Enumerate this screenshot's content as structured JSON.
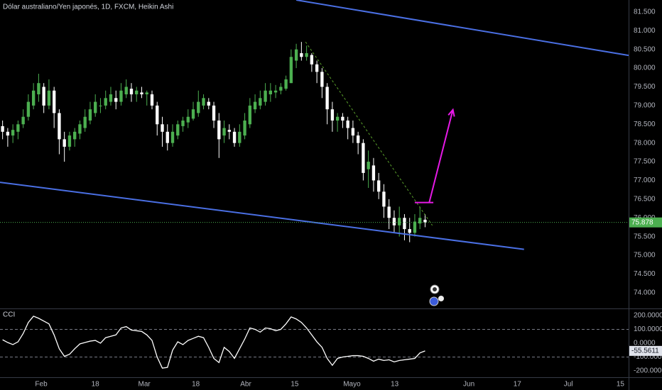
{
  "chart_data": [
    {
      "type": "candlestick",
      "title": "Dólar australiano/Yen japonés, 1D, FXCM, Heikin Ashi",
      "up_color": "#4caf50",
      "down_color": "#ffffff",
      "open": [
        78.45,
        78.3,
        78.2,
        78.3,
        78.5,
        78.7,
        79.0,
        79.3,
        79.5,
        79.0,
        79.4,
        78.8,
        78.1,
        77.9,
        78.1,
        78.25,
        78.4,
        78.6,
        78.8,
        79.0,
        79.0,
        79.1,
        79.2,
        79.1,
        79.3,
        79.45,
        79.3,
        79.35,
        79.3,
        79.3,
        79.0,
        78.5,
        78.3,
        78.0,
        78.2,
        78.45,
        78.55,
        78.65,
        78.8,
        79.0,
        79.1,
        79.0,
        78.6,
        78.2,
        78.35,
        78.3,
        78.0,
        78.2,
        78.5,
        78.9,
        79.0,
        79.1,
        79.3,
        79.35,
        79.4,
        79.45,
        79.6,
        80.2,
        80.4,
        80.3,
        80.35,
        80.1,
        79.9,
        79.5,
        78.9,
        78.6,
        78.7,
        78.6,
        78.4,
        78.2,
        78.0,
        77.3,
        77.4,
        77.0,
        76.7,
        76.3,
        76.0,
        75.8,
        76.0,
        75.7,
        75.6,
        75.85,
        75.95
      ],
      "high": [
        78.6,
        78.4,
        78.5,
        78.6,
        78.9,
        79.3,
        79.6,
        79.85,
        79.6,
        79.7,
        79.5,
        78.9,
        78.3,
        78.3,
        78.4,
        78.6,
        78.9,
        79.1,
        79.3,
        79.2,
        79.4,
        79.5,
        79.4,
        79.6,
        79.7,
        79.6,
        79.5,
        79.5,
        79.4,
        79.4,
        79.1,
        78.7,
        78.5,
        78.5,
        78.6,
        78.7,
        78.9,
        79.1,
        79.4,
        79.3,
        79.2,
        79.1,
        78.8,
        78.6,
        78.5,
        78.4,
        78.5,
        78.8,
        79.2,
        79.3,
        79.4,
        79.6,
        79.6,
        79.55,
        79.6,
        79.8,
        80.5,
        80.65,
        80.7,
        80.6,
        80.4,
        80.2,
        80.0,
        79.6,
        79.1,
        78.8,
        78.8,
        78.7,
        78.6,
        78.3,
        78.1,
        77.8,
        77.6,
        77.2,
        76.9,
        76.5,
        76.2,
        76.3,
        76.1,
        76.0,
        76.1,
        76.3,
        76.1
      ],
      "low": [
        78.1,
        77.9,
        78.0,
        78.1,
        78.4,
        78.6,
        78.9,
        79.1,
        78.8,
        78.9,
        78.4,
        77.7,
        77.5,
        77.8,
        77.9,
        78.1,
        78.3,
        78.5,
        78.7,
        78.8,
        78.9,
        79.0,
        78.9,
        79.0,
        79.2,
        79.1,
        79.1,
        79.2,
        79.0,
        78.9,
        78.2,
        77.9,
        77.8,
        77.9,
        78.1,
        78.3,
        78.4,
        78.6,
        78.7,
        78.9,
        78.9,
        78.4,
        77.6,
        78.0,
        78.1,
        77.9,
        77.9,
        78.1,
        78.4,
        78.8,
        78.9,
        79.0,
        79.1,
        79.2,
        79.3,
        79.4,
        79.6,
        80.0,
        80.2,
        80.2,
        79.9,
        79.6,
        79.2,
        78.5,
        78.3,
        78.3,
        78.4,
        78.1,
        78.0,
        77.7,
        77.0,
        76.8,
        76.7,
        76.5,
        76.0,
        75.7,
        75.6,
        75.5,
        75.4,
        75.35,
        75.5,
        75.7,
        75.75
      ],
      "close": [
        78.3,
        78.2,
        78.35,
        78.5,
        78.7,
        79.1,
        79.4,
        79.6,
        79.0,
        79.4,
        78.8,
        78.1,
        77.9,
        78.2,
        78.3,
        78.5,
        78.7,
        78.9,
        79.1,
        79.0,
        79.2,
        79.3,
        79.1,
        79.4,
        79.5,
        79.3,
        79.4,
        79.3,
        79.35,
        79.0,
        78.5,
        78.3,
        78.0,
        78.3,
        78.5,
        78.6,
        78.7,
        78.9,
        79.1,
        79.2,
        79.0,
        78.6,
        78.1,
        78.4,
        78.3,
        78.0,
        78.3,
        78.6,
        79.0,
        79.1,
        79.2,
        79.4,
        79.4,
        79.4,
        79.5,
        79.7,
        80.3,
        80.5,
        80.3,
        80.4,
        80.1,
        79.9,
        79.5,
        78.9,
        78.6,
        78.7,
        78.6,
        78.4,
        78.2,
        78.0,
        77.2,
        77.5,
        77.0,
        76.7,
        76.3,
        76.0,
        75.8,
        76.0,
        75.7,
        75.6,
        75.9,
        76.0,
        75.878
      ],
      "xlim": [
        0,
        122
      ],
      "ylim": [
        73.58,
        81.82
      ],
      "yticks": [
        {
          "value": 81.5,
          "label": "81.500"
        },
        {
          "value": 81,
          "label": "81.000"
        },
        {
          "value": 80.5,
          "label": "80.500"
        },
        {
          "value": 80,
          "label": "80.000"
        },
        {
          "value": 79.5,
          "label": "79.500"
        },
        {
          "value": 79,
          "label": "79.000"
        },
        {
          "value": 78.5,
          "label": "78.500"
        },
        {
          "value": 78,
          "label": "78.000"
        },
        {
          "value": 77.5,
          "label": "77.500"
        },
        {
          "value": 77,
          "label": "77.000"
        },
        {
          "value": 76.5,
          "label": "76.500"
        },
        {
          "value": 76,
          "label": "76.000"
        },
        {
          "value": 75.5,
          "label": "75.500"
        },
        {
          "value": 75,
          "label": "75.000"
        },
        {
          "value": 74.5,
          "label": "74.500"
        },
        {
          "value": 74,
          "label": "74.000"
        }
      ],
      "xticks": [
        {
          "value": 8,
          "label": "Feb"
        },
        {
          "value": 18.5,
          "label": "18"
        },
        {
          "value": 28,
          "label": "Mar"
        },
        {
          "value": 38,
          "label": "18"
        },
        {
          "value": 47.7,
          "label": "Abr"
        },
        {
          "value": 57.2,
          "label": "15"
        },
        {
          "value": 68.3,
          "label": "Mayo"
        },
        {
          "value": 76.6,
          "label": "13"
        },
        {
          "value": 91,
          "label": "Jun"
        },
        {
          "value": 100.4,
          "label": "17"
        },
        {
          "value": 110.3,
          "label": "Jul"
        },
        {
          "value": 120.4,
          "label": "15"
        }
      ],
      "lines": [
        {
          "x": [
            57.5,
            122
          ],
          "y": [
            81.82,
            80.34
          ],
          "color": "#4a6fe3",
          "dash": false,
          "arrow": false
        },
        {
          "x": [
            0,
            101.7
          ],
          "y": [
            76.95,
            75.16
          ],
          "color": "#4a6fe3",
          "dash": false,
          "arrow": false
        },
        {
          "x": [
            59.3,
            83.9
          ],
          "y": [
            80.7,
            75.8
          ],
          "color": "#5aa02c",
          "dash": true,
          "arrow": false
        },
        {
          "x": [
            80.5,
            84.1
          ],
          "y": [
            76.41,
            76.41
          ],
          "color": "#e619e6",
          "dash": false,
          "arrow": false
        },
        {
          "x": [
            83.3,
            87.9
          ],
          "y": [
            76.41,
            78.89
          ],
          "color": "#e619e6",
          "dash": false,
          "arrow": true
        }
      ]
    },
    {
      "type": "line",
      "title": "CCI",
      "color": "#ffffff",
      "values": [
        25,
        5,
        -10,
        10,
        70,
        150,
        195,
        180,
        160,
        140,
        60,
        -40,
        -95,
        -80,
        -40,
        -5,
        5,
        15,
        20,
        0,
        40,
        50,
        60,
        110,
        120,
        95,
        90,
        85,
        60,
        20,
        -100,
        -180,
        -175,
        -50,
        10,
        -10,
        20,
        35,
        50,
        40,
        -30,
        -110,
        -140,
        -30,
        -60,
        -110,
        -40,
        30,
        110,
        100,
        80,
        110,
        105,
        90,
        100,
        140,
        190,
        175,
        150,
        110,
        60,
        10,
        -30,
        -110,
        -160,
        -110,
        -100,
        -95,
        -90,
        -90,
        -95,
        -110,
        -130,
        -115,
        -125,
        -120,
        -135,
        -125,
        -120,
        -115,
        -110,
        -70,
        -55.5611
      ],
      "ylim": [
        -246,
        246
      ],
      "yticks": [
        {
          "value": 200,
          "label": "200.0000"
        },
        {
          "value": 100,
          "label": "100.0000"
        },
        {
          "value": 0,
          "label": "0.0000"
        },
        {
          "value": -100,
          "label": "-100.0000"
        },
        {
          "value": -200,
          "label": "-200.0000"
        }
      ],
      "levels": [
        100,
        -100
      ]
    }
  ]
}
